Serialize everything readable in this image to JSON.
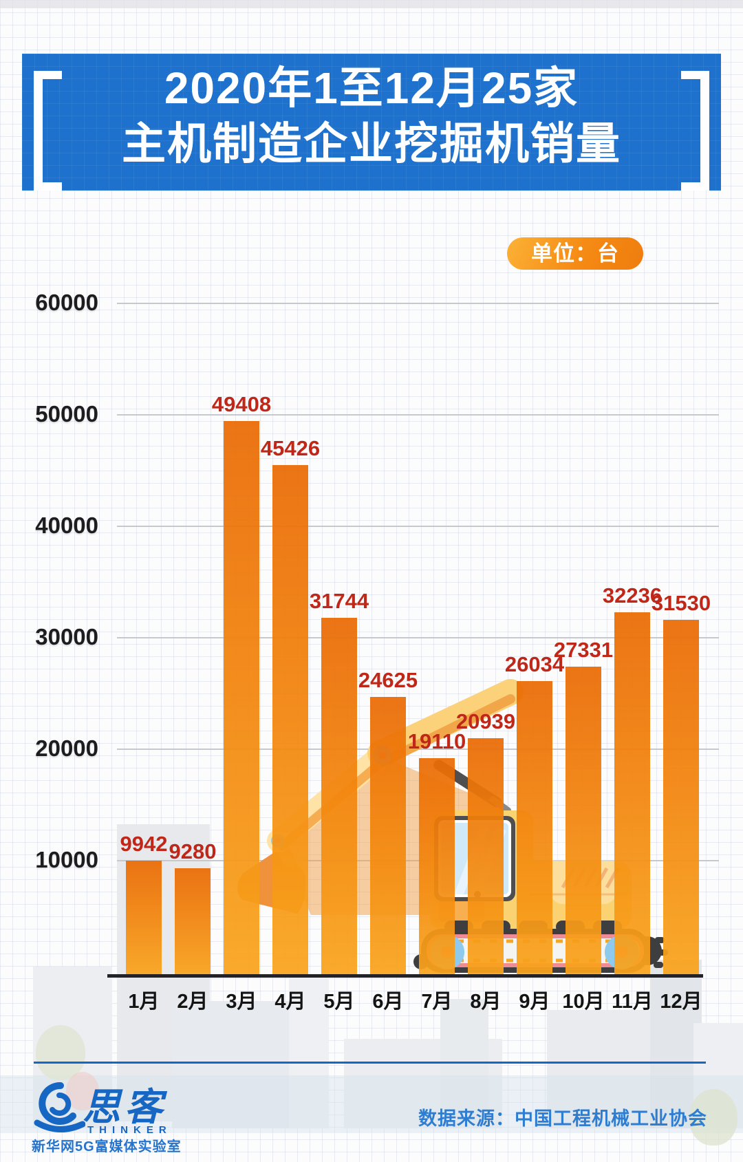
{
  "header": {
    "title_line1": "2020年1至12月25家",
    "title_line2": "主机制造企业挖掘机销量",
    "unit_badge": "单位：台"
  },
  "chart_data": {
    "type": "bar",
    "title": "2020年1至12月25家主机制造企业挖掘机销量",
    "unit": "台",
    "categories": [
      "1月",
      "2月",
      "3月",
      "4月",
      "5月",
      "6月",
      "7月",
      "8月",
      "9月",
      "10月",
      "11月",
      "12月"
    ],
    "values": [
      9942,
      9280,
      49408,
      45426,
      31744,
      24625,
      19110,
      20939,
      26034,
      27331,
      32236,
      31530
    ],
    "ytick_values": [
      10000,
      20000,
      30000,
      40000,
      50000,
      60000
    ],
    "ylim": [
      0,
      60000
    ],
    "grid": true,
    "legend": "none",
    "bar_color_top": "#ea6a03",
    "bar_color_bottom": "#f9a41c",
    "value_label_color": "#bf2718"
  },
  "footer": {
    "logo_cn": "思客",
    "logo_en": "THINKER",
    "logo_sub": "新华网5G富媒体实验室",
    "source": "数据来源：中国工程机械工业协会"
  }
}
